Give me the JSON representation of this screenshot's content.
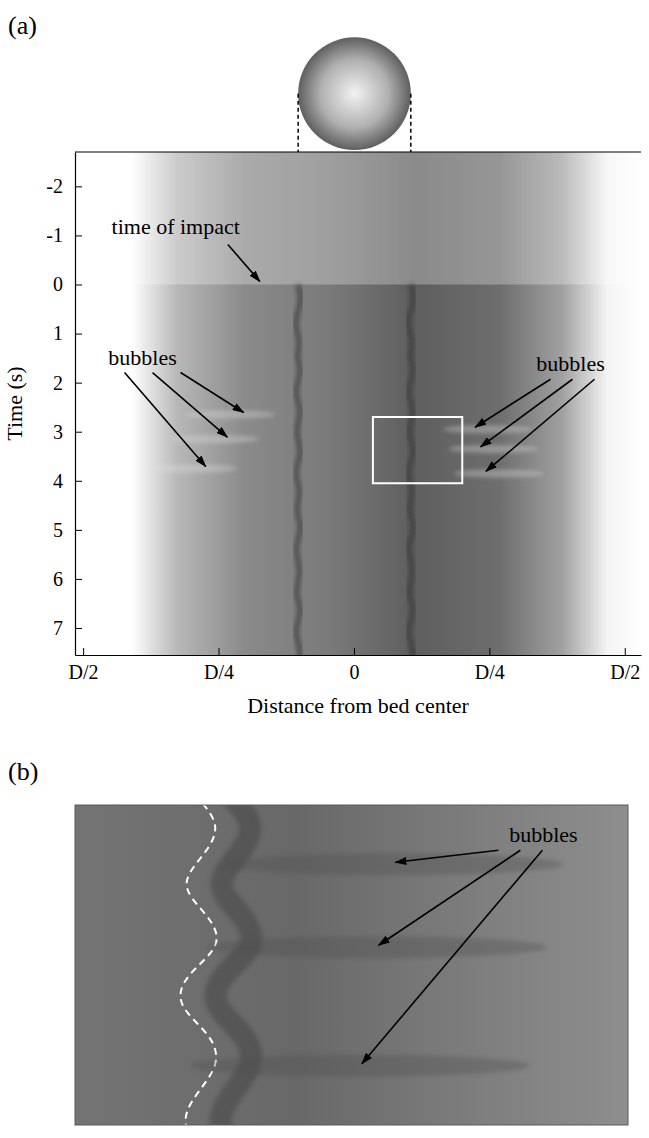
{
  "chart_data": [
    {
      "type": "image",
      "panel_label": "(a)",
      "x_label": "Distance from bed center",
      "y_label": "Time (s)",
      "xlim": [
        -0.515,
        0.53
      ],
      "xticks": [
        {
          "value": -0.5,
          "label": "D/2"
        },
        {
          "value": -0.25,
          "label": "D/4"
        },
        0,
        {
          "value": 0.25,
          "label": "D/4"
        },
        {
          "value": 0.5,
          "label": "D/2"
        }
      ],
      "ylim": [
        -2.7,
        7.55
      ],
      "yticks": [
        -2,
        -1,
        0,
        1,
        2,
        3,
        4,
        5,
        6,
        7
      ],
      "sphere": {
        "x": [
          -0.103,
          0.105
        ]
      },
      "annotations": [
        {
          "text": "time of impact",
          "x": [
            -0.17
          ],
          "y": [
            0
          ]
        },
        {
          "text": "bubbles",
          "x": [
            -0.2,
            -0.23,
            -0.27
          ],
          "y": [
            2.65,
            3.15,
            3.75
          ]
        },
        {
          "text": "bubbles",
          "x": [
            0.22,
            0.23,
            0.24
          ],
          "y": [
            2.95,
            3.35,
            3.85
          ]
        }
      ],
      "zoom_box": {
        "x": [
          0.035,
          0.2
        ],
        "y": [
          2.7,
          4.05
        ]
      }
    },
    {
      "type": "image",
      "panel_label": "(b)",
      "tick_labels": false,
      "xlim": [
        0.035,
        0.2
      ],
      "ylim": [
        2.7,
        4.05
      ],
      "annotations": [
        {
          "text": "bubbles",
          "x": [
            0.13,
            0.125,
            0.12
          ],
          "y": [
            2.95,
            3.3,
            3.8
          ]
        }
      ]
    }
  ]
}
